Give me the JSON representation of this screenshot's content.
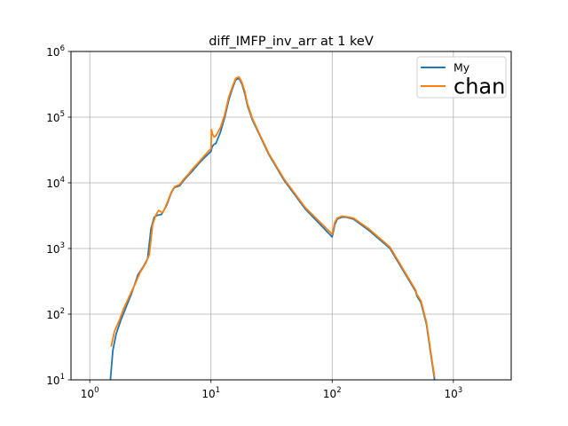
{
  "chart_data": {
    "type": "line",
    "title": "diff_IMFP_inv_arr at 1 keV",
    "xlabel": "",
    "ylabel": "",
    "x_scale": "log",
    "y_scale": "log",
    "xlim": [
      0.7,
      3000
    ],
    "ylim": [
      10,
      1000000
    ],
    "grid": true,
    "legend_position": "top-right",
    "x_ticks": [
      {
        "value": 1,
        "base": "10",
        "exp": "0"
      },
      {
        "value": 10,
        "base": "10",
        "exp": "1"
      },
      {
        "value": 100,
        "base": "10",
        "exp": "2"
      },
      {
        "value": 1000,
        "base": "10",
        "exp": "3"
      }
    ],
    "y_ticks": [
      {
        "value": 10,
        "base": "10",
        "exp": "1"
      },
      {
        "value": 100,
        "base": "10",
        "exp": "2"
      },
      {
        "value": 1000,
        "base": "10",
        "exp": "3"
      },
      {
        "value": 10000,
        "base": "10",
        "exp": "4"
      },
      {
        "value": 100000,
        "base": "10",
        "exp": "5"
      },
      {
        "value": 1000000,
        "base": "10",
        "exp": "6"
      }
    ],
    "series": [
      {
        "name": "My",
        "color": "#1f77b4",
        "x": [
          1.48,
          1.55,
          1.65,
          1.8,
          2.0,
          2.2,
          2.5,
          2.8,
          3.0,
          3.2,
          3.4,
          3.6,
          3.9,
          4.3,
          4.7,
          5.0,
          5.5,
          6.0,
          6.5,
          7.0,
          8.0,
          9.0,
          10.0,
          10.2,
          10.5,
          11.0,
          12.0,
          13.0,
          14.0,
          15.0,
          16.0,
          17.0,
          18.0,
          19.0,
          20.0,
          22.0,
          25.0,
          30.0,
          40.0,
          60.0,
          100.0,
          105.0,
          110.0,
          120.0,
          130.0,
          150.0,
          200.0,
          300.0,
          490.0,
          500.0,
          540.0,
          600.0,
          650.0,
          700.0
        ],
        "y": [
          10,
          28,
          50,
          80,
          130,
          200,
          400,
          550,
          700,
          2000,
          3000,
          3200,
          3300,
          4500,
          7000,
          8500,
          9000,
          11000,
          13000,
          15000,
          20000,
          25000,
          30000,
          35000,
          38000,
          40000,
          60000,
          100000,
          180000,
          270000,
          370000,
          390000,
          320000,
          230000,
          150000,
          90000,
          55000,
          27000,
          11000,
          4000,
          1500,
          2300,
          2800,
          3000,
          3000,
          2800,
          1900,
          1000,
          220,
          190,
          150,
          70,
          25,
          10
        ]
      },
      {
        "name": "chan",
        "color": "#ff7f0e",
        "x": [
          1.5,
          1.6,
          1.75,
          1.9,
          2.1,
          2.35,
          2.6,
          2.9,
          3.1,
          3.3,
          3.5,
          3.7,
          4.0,
          4.3,
          4.7,
          5.0,
          5.5,
          6.0,
          6.5,
          7.0,
          8.0,
          9.0,
          10.0,
          10.1,
          10.3,
          10.6,
          11.0,
          12.0,
          13.0,
          14.0,
          15.0,
          16.0,
          17.0,
          18.0,
          19.0,
          20.0,
          22.0,
          25.0,
          30.0,
          40.0,
          60.0,
          100.0,
          105.0,
          110.0,
          120.0,
          130.0,
          150.0,
          200.0,
          300.0,
          490.0,
          500.0,
          540.0,
          600.0,
          650.0,
          700.0
        ],
        "y": [
          32,
          55,
          80,
          120,
          180,
          280,
          430,
          600,
          800,
          2300,
          3200,
          3800,
          3500,
          4700,
          7200,
          8700,
          9400,
          11500,
          13500,
          16000,
          21000,
          27000,
          33000,
          65000,
          55000,
          50000,
          52000,
          70000,
          110000,
          200000,
          290000,
          390000,
          410000,
          340000,
          250000,
          160000,
          95000,
          57000,
          28000,
          11500,
          4200,
          1650,
          2500,
          2900,
          3100,
          3050,
          2900,
          2000,
          1050,
          230,
          200,
          160,
          75,
          27,
          11
        ]
      }
    ]
  }
}
